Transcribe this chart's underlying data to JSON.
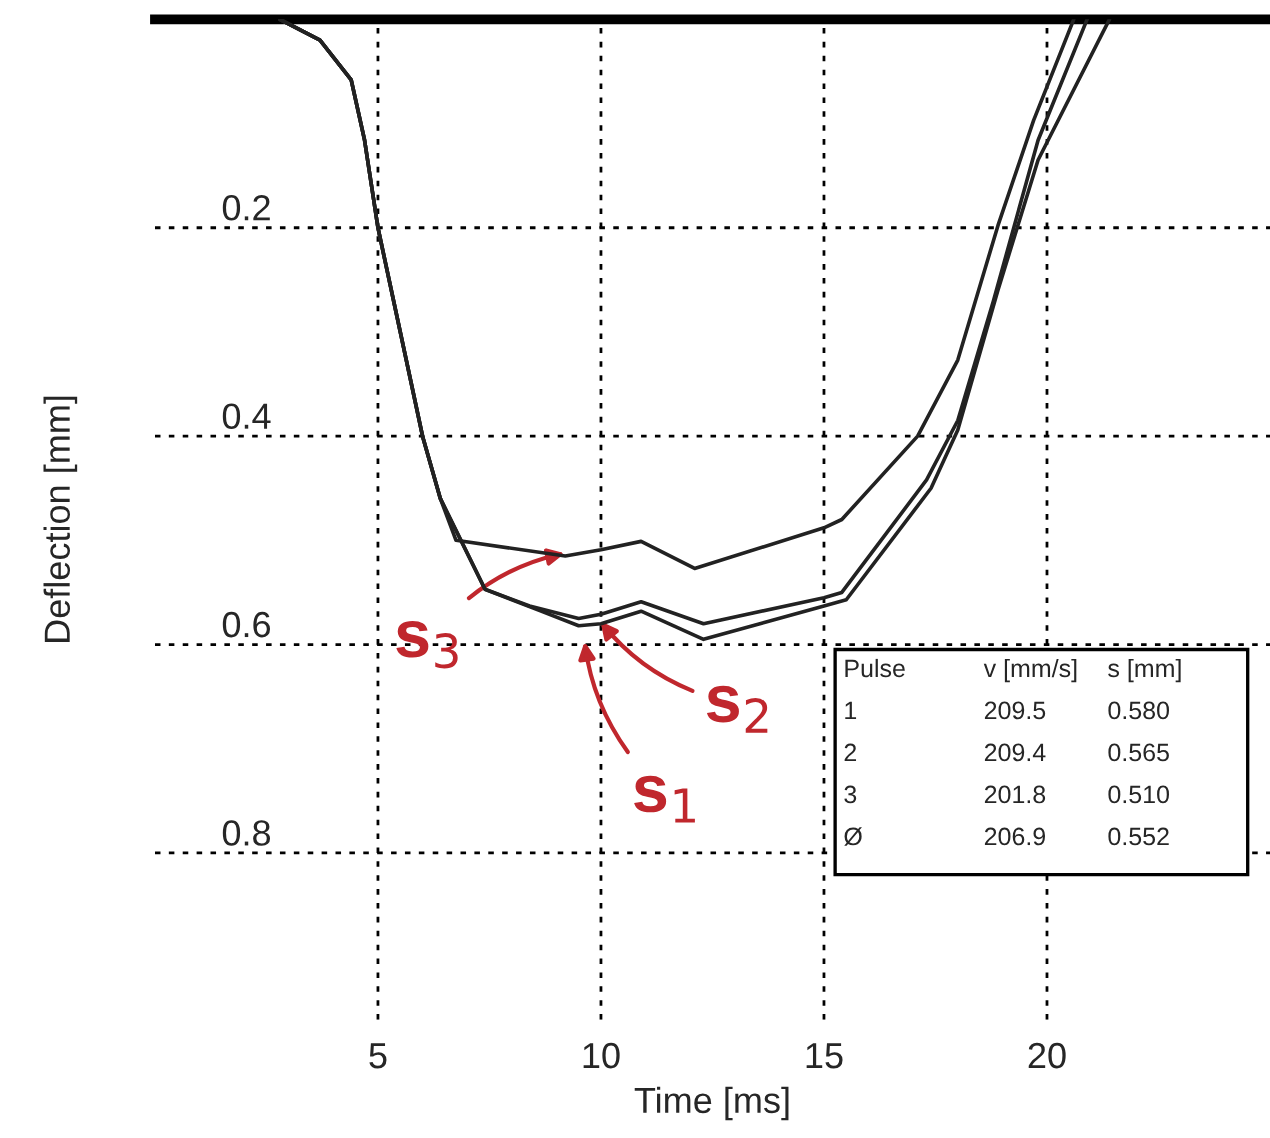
{
  "chart_data": {
    "type": "line",
    "xlabel": "Time [ms]",
    "ylabel": "Deflection [mm]",
    "xlim": [
      0,
      25
    ],
    "ylim": [
      0.96,
      0
    ],
    "xticks": [
      5,
      10,
      15,
      20
    ],
    "yticks": [
      0.2,
      0.4,
      0.6,
      0.8
    ],
    "grid": true,
    "line_style": "solid",
    "marker": "none",
    "series": [
      {
        "color": "#222222",
        "x": [
          2.8,
          3.7,
          4.4,
          4.7,
          5.0,
          5.5,
          6.0,
          6.4,
          7.4,
          8.6,
          9.5,
          10.0,
          10.9,
          12.3,
          15.0,
          15.5,
          17.4,
          18.0,
          18.9,
          19.8,
          21.4
        ],
        "values": [
          0,
          0.02,
          0.058,
          0.116,
          0.2,
          0.3,
          0.4,
          0.46,
          0.547,
          0.567,
          0.582,
          0.58,
          0.568,
          0.595,
          0.563,
          0.557,
          0.45,
          0.394,
          0.26,
          0.135,
          0
        ]
      },
      {
        "color": "#222222",
        "x": [
          2.8,
          3.7,
          4.4,
          4.7,
          5.0,
          5.5,
          6.0,
          6.4,
          7.4,
          8.4,
          9.5,
          10.0,
          10.9,
          12.3,
          15.0,
          15.4,
          17.3,
          18.0,
          18.8,
          19.8,
          20.9
        ],
        "values": [
          0,
          0.02,
          0.058,
          0.116,
          0.2,
          0.3,
          0.4,
          0.46,
          0.547,
          0.563,
          0.575,
          0.571,
          0.559,
          0.58,
          0.555,
          0.55,
          0.442,
          0.385,
          0.27,
          0.116,
          0
        ]
      },
      {
        "color": "#222222",
        "x": [
          2.8,
          3.7,
          4.4,
          4.7,
          5.0,
          5.5,
          6.0,
          6.4,
          6.75,
          9.2,
          10.0,
          10.9,
          12.1,
          15.0,
          15.4,
          17.1,
          18.0,
          18.9,
          19.7,
          20.6
        ],
        "values": [
          0,
          0.02,
          0.058,
          0.116,
          0.2,
          0.3,
          0.4,
          0.46,
          0.5,
          0.515,
          0.509,
          0.501,
          0.527,
          0.488,
          0.48,
          0.4,
          0.327,
          0.198,
          0.097,
          0
        ]
      }
    ],
    "annotations": [
      {
        "text": "s$_{3}$",
        "x": 9.5,
        "y": 0.51
      },
      {
        "text": "s$_{2}$",
        "x": 9.8,
        "y": 0.567
      },
      {
        "text": "s$_{1}$",
        "x": 9.6,
        "y": 0.584
      },
      "Pulse",
      "v [mm/s]",
      "s [mm]",
      "1",
      "209.5",
      "0.580",
      "2",
      "209.4",
      "0.565",
      "3",
      "201.8",
      "0.510",
      "Ø",
      "206.9",
      "0.552"
    ]
  }
}
